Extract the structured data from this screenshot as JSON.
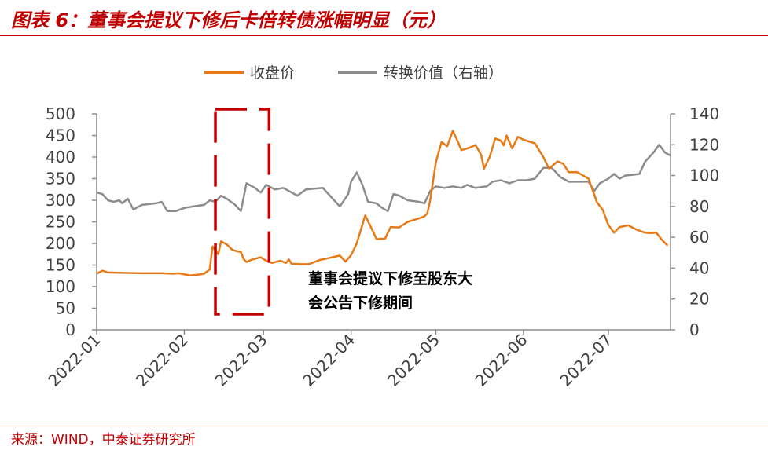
{
  "header": {
    "title": "图表 6：董事会提议下修后卡倍转债涨幅明显（元）"
  },
  "footer": {
    "source": "来源：WIND，中泰证券研究所"
  },
  "colors": {
    "accent": "#c00000",
    "close": "#e87a16",
    "conv": "#8c8c8c",
    "axis": "#8c8c8c",
    "text": "#404040"
  },
  "chart_data": {
    "type": "line",
    "legend_position": "top-center",
    "grid": false,
    "x_axis": {
      "range": [
        "2022-01-01",
        "2022-07-23"
      ],
      "ticks": [
        "2022-01",
        "2022-02",
        "2022-03",
        "2022-04",
        "2022-05",
        "2022-06",
        "2022-07"
      ]
    },
    "y_left": {
      "range": [
        0,
        500
      ],
      "ticks": [
        0,
        50,
        100,
        150,
        200,
        250,
        300,
        350,
        400,
        450,
        500
      ]
    },
    "y_right": {
      "range": [
        0,
        140
      ],
      "ticks": [
        0,
        20,
        40,
        60,
        80,
        100,
        120,
        140
      ]
    },
    "annotation": {
      "lines": [
        "董事会提议下修至股东大",
        "会公告下修期间"
      ],
      "period": [
        "2022-02-12",
        "2022-03-03"
      ]
    },
    "series": [
      {
        "name": "收盘价",
        "axis": "left",
        "points": [
          [
            "2022-01-01",
            130
          ],
          [
            "2022-01-03",
            137
          ],
          [
            "2022-01-05",
            133
          ],
          [
            "2022-01-10",
            132
          ],
          [
            "2022-01-17",
            131
          ],
          [
            "2022-01-24",
            131
          ],
          [
            "2022-01-28",
            130
          ],
          [
            "2022-01-30",
            131
          ],
          [
            "2022-02-03",
            126
          ],
          [
            "2022-02-06",
            128
          ],
          [
            "2022-02-08",
            130
          ],
          [
            "2022-02-10",
            140
          ],
          [
            "2022-02-11",
            193
          ],
          [
            "2022-02-13",
            175
          ],
          [
            "2022-02-14",
            205
          ],
          [
            "2022-02-16",
            198
          ],
          [
            "2022-02-18",
            185
          ],
          [
            "2022-02-21",
            180
          ],
          [
            "2022-02-22",
            164
          ],
          [
            "2022-02-23",
            157
          ],
          [
            "2022-02-25",
            163
          ],
          [
            "2022-02-28",
            168
          ],
          [
            "2022-03-02",
            160
          ],
          [
            "2022-03-04",
            155
          ],
          [
            "2022-03-07",
            160
          ],
          [
            "2022-03-09",
            155
          ],
          [
            "2022-03-10",
            163
          ],
          [
            "2022-03-11",
            153
          ],
          [
            "2022-03-14",
            152
          ],
          [
            "2022-03-17",
            152
          ],
          [
            "2022-03-21",
            162
          ],
          [
            "2022-03-24",
            166
          ],
          [
            "2022-03-28",
            172
          ],
          [
            "2022-03-30",
            158
          ],
          [
            "2022-04-01",
            173
          ],
          [
            "2022-04-03",
            200
          ],
          [
            "2022-04-06",
            265
          ],
          [
            "2022-04-08",
            238
          ],
          [
            "2022-04-10",
            210
          ],
          [
            "2022-04-13",
            211
          ],
          [
            "2022-04-15",
            238
          ],
          [
            "2022-04-18",
            237
          ],
          [
            "2022-04-21",
            250
          ],
          [
            "2022-04-25",
            258
          ],
          [
            "2022-04-27",
            263
          ],
          [
            "2022-04-28",
            270
          ],
          [
            "2022-04-29",
            300
          ],
          [
            "2022-05-01",
            388
          ],
          [
            "2022-05-03",
            435
          ],
          [
            "2022-05-05",
            425
          ],
          [
            "2022-05-07",
            461
          ],
          [
            "2022-05-09",
            432
          ],
          [
            "2022-05-10",
            416
          ],
          [
            "2022-05-13",
            422
          ],
          [
            "2022-05-15",
            428
          ],
          [
            "2022-05-17",
            405
          ],
          [
            "2022-05-18",
            373
          ],
          [
            "2022-05-20",
            400
          ],
          [
            "2022-05-22",
            443
          ],
          [
            "2022-05-24",
            438
          ],
          [
            "2022-05-25",
            427
          ],
          [
            "2022-05-26",
            450
          ],
          [
            "2022-05-28",
            420
          ],
          [
            "2022-05-30",
            447
          ],
          [
            "2022-06-01",
            440
          ],
          [
            "2022-06-05",
            432
          ],
          [
            "2022-06-08",
            400
          ],
          [
            "2022-06-10",
            373
          ],
          [
            "2022-06-13",
            390
          ],
          [
            "2022-06-15",
            385
          ],
          [
            "2022-06-17",
            365
          ],
          [
            "2022-06-20",
            365
          ],
          [
            "2022-06-24",
            350
          ],
          [
            "2022-06-27",
            295
          ],
          [
            "2022-06-29",
            278
          ],
          [
            "2022-07-01",
            243
          ],
          [
            "2022-07-03",
            225
          ],
          [
            "2022-07-05",
            238
          ],
          [
            "2022-07-08",
            242
          ],
          [
            "2022-07-11",
            232
          ],
          [
            "2022-07-14",
            225
          ],
          [
            "2022-07-16",
            224
          ],
          [
            "2022-07-18",
            225
          ],
          [
            "2022-07-20",
            208
          ],
          [
            "2022-07-22",
            195
          ]
        ]
      },
      {
        "name": "转换价值（右轴）",
        "axis": "right",
        "points": [
          [
            "2022-01-01",
            89
          ],
          [
            "2022-01-03",
            88
          ],
          [
            "2022-01-05",
            84
          ],
          [
            "2022-01-07",
            83
          ],
          [
            "2022-01-09",
            84
          ],
          [
            "2022-01-10",
            82
          ],
          [
            "2022-01-12",
            85
          ],
          [
            "2022-01-14",
            78
          ],
          [
            "2022-01-17",
            81
          ],
          [
            "2022-01-22",
            82
          ],
          [
            "2022-01-24",
            83
          ],
          [
            "2022-01-26",
            77
          ],
          [
            "2022-01-29",
            77
          ],
          [
            "2022-02-01",
            79
          ],
          [
            "2022-02-04",
            80
          ],
          [
            "2022-02-08",
            81
          ],
          [
            "2022-02-10",
            84
          ],
          [
            "2022-02-12",
            83
          ],
          [
            "2022-02-14",
            87
          ],
          [
            "2022-02-16",
            85
          ],
          [
            "2022-02-19",
            81
          ],
          [
            "2022-02-21",
            77
          ],
          [
            "2022-02-23",
            95
          ],
          [
            "2022-02-26",
            92
          ],
          [
            "2022-02-28",
            89
          ],
          [
            "2022-03-02",
            94
          ],
          [
            "2022-03-05",
            91
          ],
          [
            "2022-03-08",
            92
          ],
          [
            "2022-03-10",
            90
          ],
          [
            "2022-03-13",
            87
          ],
          [
            "2022-03-16",
            91
          ],
          [
            "2022-03-22",
            92
          ],
          [
            "2022-03-25",
            86
          ],
          [
            "2022-03-28",
            80
          ],
          [
            "2022-03-31",
            88
          ],
          [
            "2022-04-01",
            96
          ],
          [
            "2022-04-03",
            102
          ],
          [
            "2022-04-05",
            94
          ],
          [
            "2022-04-07",
            83
          ],
          [
            "2022-04-10",
            82
          ],
          [
            "2022-04-12",
            79
          ],
          [
            "2022-04-14",
            77
          ],
          [
            "2022-04-16",
            88
          ],
          [
            "2022-04-18",
            87
          ],
          [
            "2022-04-21",
            84
          ],
          [
            "2022-04-25",
            83
          ],
          [
            "2022-04-27",
            82
          ],
          [
            "2022-04-29",
            90
          ],
          [
            "2022-05-01",
            93
          ],
          [
            "2022-05-04",
            92
          ],
          [
            "2022-05-07",
            93
          ],
          [
            "2022-05-10",
            92
          ],
          [
            "2022-05-12",
            94
          ],
          [
            "2022-05-15",
            92
          ],
          [
            "2022-05-19",
            93
          ],
          [
            "2022-05-21",
            96
          ],
          [
            "2022-05-24",
            97
          ],
          [
            "2022-05-27",
            95
          ],
          [
            "2022-05-30",
            97
          ],
          [
            "2022-06-02",
            97
          ],
          [
            "2022-06-05",
            98
          ],
          [
            "2022-06-08",
            105
          ],
          [
            "2022-06-11",
            105
          ],
          [
            "2022-06-14",
            99
          ],
          [
            "2022-06-17",
            96
          ],
          [
            "2022-06-20",
            96
          ],
          [
            "2022-06-24",
            96
          ],
          [
            "2022-06-26",
            90
          ],
          [
            "2022-06-28",
            95
          ],
          [
            "2022-07-01",
            98
          ],
          [
            "2022-07-03",
            101
          ],
          [
            "2022-07-05",
            98
          ],
          [
            "2022-07-07",
            100
          ],
          [
            "2022-07-12",
            101
          ],
          [
            "2022-07-14",
            109
          ],
          [
            "2022-07-17",
            115
          ],
          [
            "2022-07-19",
            120
          ],
          [
            "2022-07-21",
            115
          ],
          [
            "2022-07-23",
            113
          ]
        ]
      }
    ]
  }
}
